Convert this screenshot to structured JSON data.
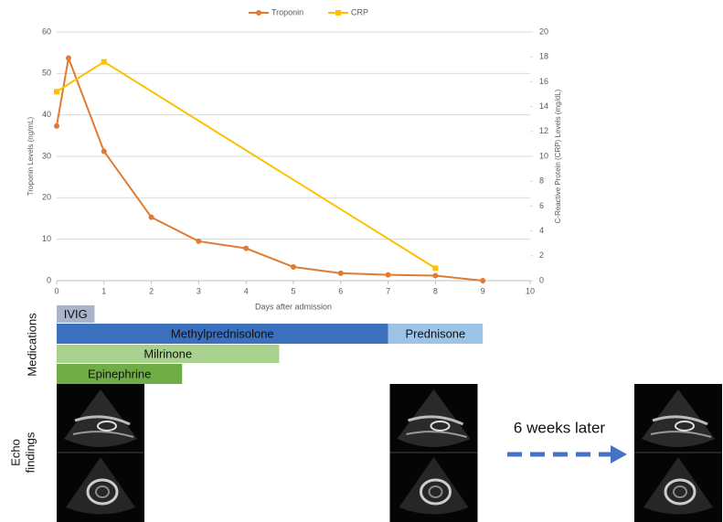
{
  "chart_data": {
    "type": "line",
    "legend": "top",
    "x_label": "Days after admission",
    "y_label": "Troponin Levels (ng/mL)",
    "y2_label": "C-Reactive Protein (CRP) Levels (mg/dL)",
    "xlim": [
      0,
      10
    ],
    "xticks": [
      0,
      1,
      2,
      3,
      4,
      5,
      6,
      7,
      8,
      9,
      10
    ],
    "ylim": [
      0,
      60
    ],
    "yticks": [
      0,
      10,
      20,
      30,
      40,
      50,
      60
    ],
    "y2lim": [
      0,
      20
    ],
    "y2ticks": [
      0,
      2,
      4,
      6,
      8,
      10,
      12,
      14,
      16,
      18,
      20
    ],
    "grid": true,
    "series": [
      {
        "name": "Troponin",
        "color": "#e07b31",
        "marker": "circle",
        "x": [
          0,
          0.25,
          1,
          2,
          3,
          4,
          5,
          6,
          7,
          8,
          9
        ],
        "values": [
          37.3,
          53.7,
          31.2,
          15.3,
          9.5,
          7.8,
          3.3,
          1.8,
          1.4,
          1.2,
          0
        ]
      },
      {
        "name": "CRP",
        "color": "#ffc000",
        "marker": "square",
        "axis": "y2",
        "x": [
          0,
          1,
          8
        ],
        "values": [
          15.2,
          17.6,
          1.0
        ]
      }
    ]
  },
  "medications": {
    "title": "Medications",
    "bars": [
      {
        "label": "IVIG",
        "start": 0,
        "end": 0.8,
        "row": 0,
        "color": "#a9b4c9"
      },
      {
        "label": "Methylprednisolone",
        "start": 0,
        "end": 7,
        "row": 1,
        "color": "#3a70bd"
      },
      {
        "label": "Prednisone",
        "start": 7,
        "end": 9,
        "row": 1,
        "color": "#9dc3e6"
      },
      {
        "label": "Milrinone",
        "start": 0,
        "end": 4.7,
        "row": 2,
        "color": "#a9d18e"
      },
      {
        "label": "Epinephrine",
        "start": 0,
        "end": 2.65,
        "row": 3,
        "color": "#70ad47"
      }
    ]
  },
  "echo": {
    "title": [
      "Echo",
      "findings"
    ],
    "note": "6 weeks later"
  }
}
